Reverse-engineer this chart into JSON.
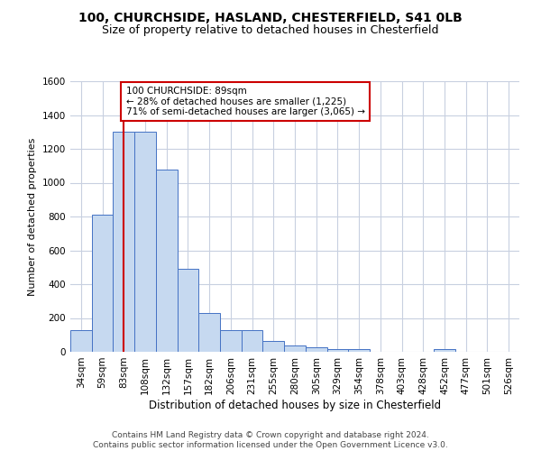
{
  "title1": "100, CHURCHSIDE, HASLAND, CHESTERFIELD, S41 0LB",
  "title2": "Size of property relative to detached houses in Chesterfield",
  "xlabel": "Distribution of detached houses by size in Chesterfield",
  "ylabel": "Number of detached properties",
  "footer1": "Contains HM Land Registry data © Crown copyright and database right 2024.",
  "footer2": "Contains public sector information licensed under the Open Government Licence v3.0.",
  "categories": [
    "34sqm",
    "59sqm",
    "83sqm",
    "108sqm",
    "132sqm",
    "157sqm",
    "182sqm",
    "206sqm",
    "231sqm",
    "255sqm",
    "280sqm",
    "305sqm",
    "329sqm",
    "354sqm",
    "378sqm",
    "403sqm",
    "428sqm",
    "452sqm",
    "477sqm",
    "501sqm",
    "526sqm"
  ],
  "values": [
    130,
    810,
    1300,
    1300,
    1080,
    490,
    230,
    130,
    130,
    65,
    35,
    25,
    15,
    15,
    0,
    0,
    0,
    15,
    0,
    0,
    0
  ],
  "bar_color": "#c6d9f0",
  "bar_edge_color": "#4472c4",
  "vline_x": 2,
  "vline_color": "#cc0000",
  "annotation_text": "100 CHURCHSIDE: 89sqm\n← 28% of detached houses are smaller (1,225)\n71% of semi-detached houses are larger (3,065) →",
  "annotation_box_color": "#ffffff",
  "annotation_box_edge": "#cc0000",
  "ylim": [
    0,
    1600
  ],
  "yticks": [
    0,
    200,
    400,
    600,
    800,
    1000,
    1200,
    1400,
    1600
  ],
  "grid_color": "#c8d0e0",
  "background_color": "#ffffff",
  "title1_fontsize": 10,
  "title2_fontsize": 9,
  "xlabel_fontsize": 8.5,
  "ylabel_fontsize": 8,
  "tick_fontsize": 7.5,
  "footer_fontsize": 6.5,
  "annot_fontsize": 7.5
}
